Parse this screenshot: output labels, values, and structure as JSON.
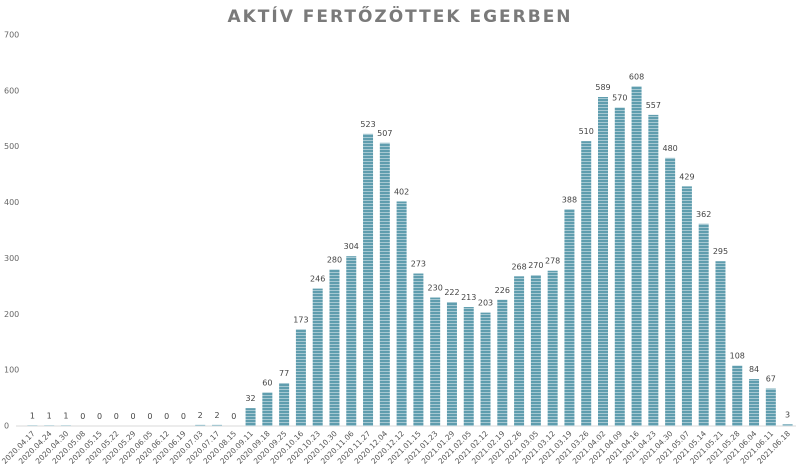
{
  "chart_data": {
    "type": "bar",
    "title": "AKTÍV FERTŐZÖTTEK EGERBEN",
    "categories": [
      "2020.04.17",
      "2020.04.24",
      "2020.04.30",
      "2020.05.08",
      "2020.05.15",
      "2020.05.22",
      "2020.05.29",
      "2020.06.05",
      "2020.06.12",
      "2020.06.19",
      "2020.07.03",
      "2020.07.17",
      "2020.08.15",
      "2020.09.11",
      "2020.09.18",
      "2020.09.25",
      "2020.10.16",
      "2020.10.23",
      "2020.10.30",
      "2020.11.06",
      "2020.11.27",
      "2020.12.04",
      "2020.12.12",
      "2021.01.15",
      "2021.01.23",
      "2021.01.29",
      "2021.02.05",
      "2021.02.12",
      "2021.02.19",
      "2021.02.26",
      "2021.03.05",
      "2021.03.12",
      "2021.03.19",
      "2021.03.26",
      "2021.04.02",
      "2021.04.09",
      "2021.04.16",
      "2021.04.23",
      "2021.04.30",
      "2021.05.07",
      "2021.05.14",
      "2021.05.21",
      "2021.05.28",
      "2021.06.04",
      "2021.06.11",
      "2021.06.18"
    ],
    "values": [
      1,
      1,
      1,
      0,
      0,
      0,
      0,
      0,
      0,
      0,
      2,
      2,
      0,
      32,
      60,
      77,
      173,
      246,
      280,
      304,
      523,
      507,
      402,
      273,
      230,
      222,
      213,
      203,
      226,
      268,
      270,
      278,
      388,
      510,
      589,
      570,
      608,
      557,
      480,
      429,
      362,
      295,
      108,
      84,
      67,
      3
    ],
    "color": "#5f9dae",
    "ylim": [
      0,
      700
    ],
    "yticks": [
      0,
      100,
      200,
      300,
      400,
      500,
      600,
      700
    ],
    "grid": false
  }
}
